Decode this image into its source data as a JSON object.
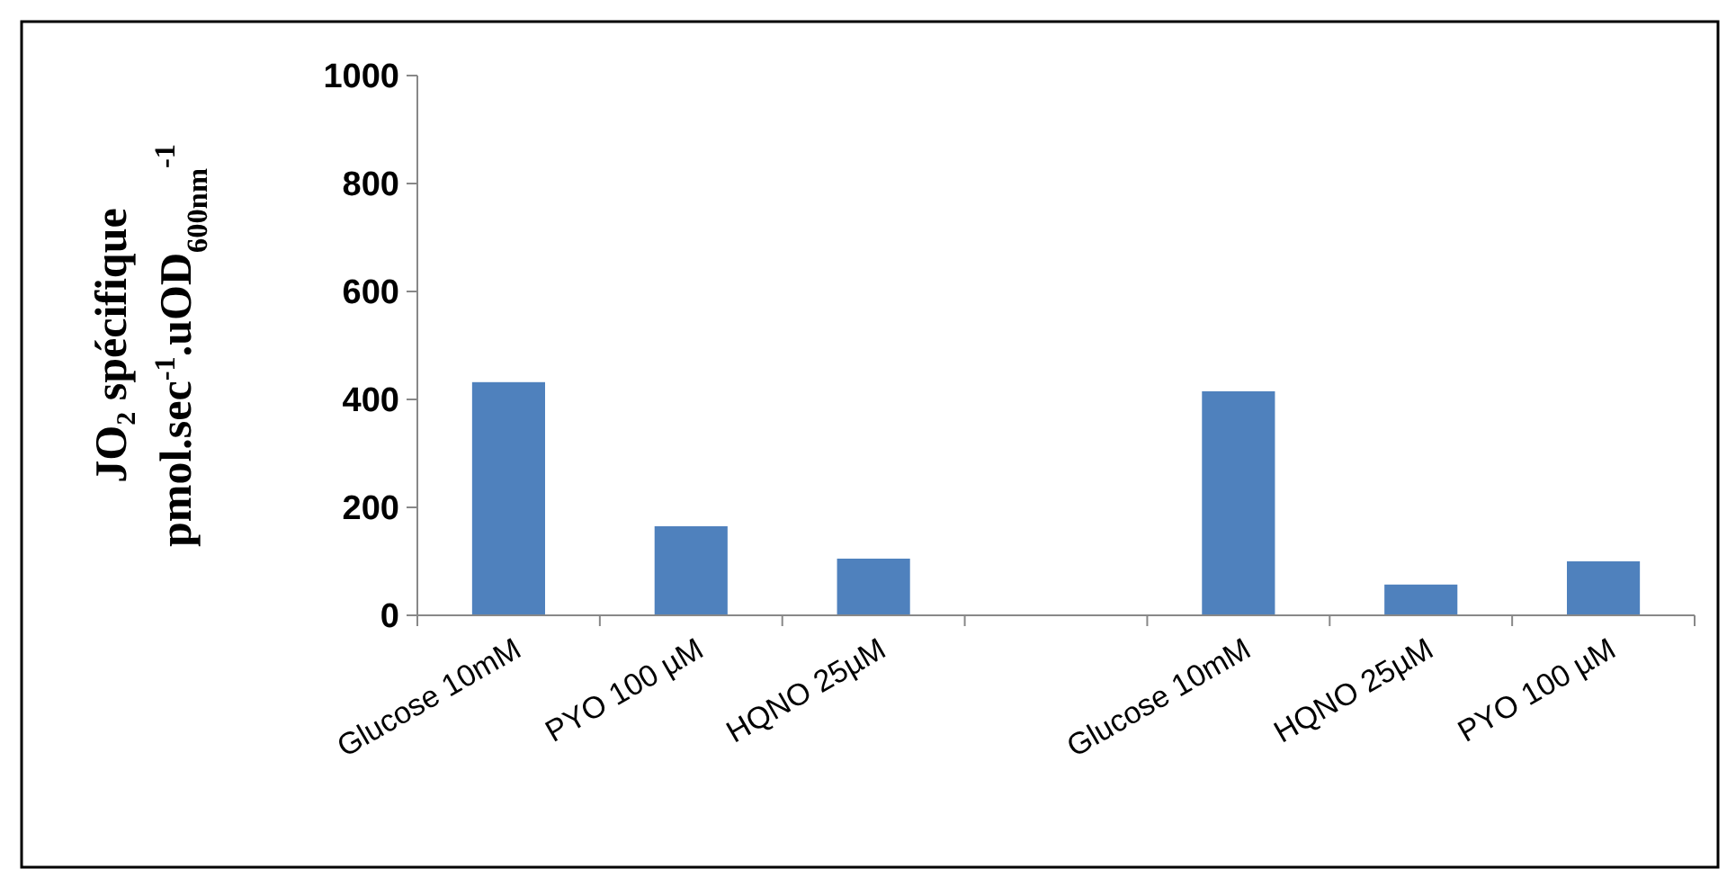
{
  "chart_data": {
    "type": "bar",
    "ylabel": "JO₂ spécifique\npmol.sec$^{-1}$.uOD$_{600nm}$$^{-1}$",
    "categories": [
      "Glucose 10mM",
      "PYO 100 µM",
      "HQNO 25µM",
      null,
      "Glucose 10mM",
      "HQNO 25µM",
      "PYO 100 µM"
    ],
    "values": [
      432,
      165,
      105,
      null,
      415,
      57,
      100
    ],
    "color": "#4f81bd",
    "ylim": [
      0,
      1000
    ],
    "yticks": [
      0,
      200,
      400,
      600,
      800,
      1000
    ],
    "grid": false
  }
}
